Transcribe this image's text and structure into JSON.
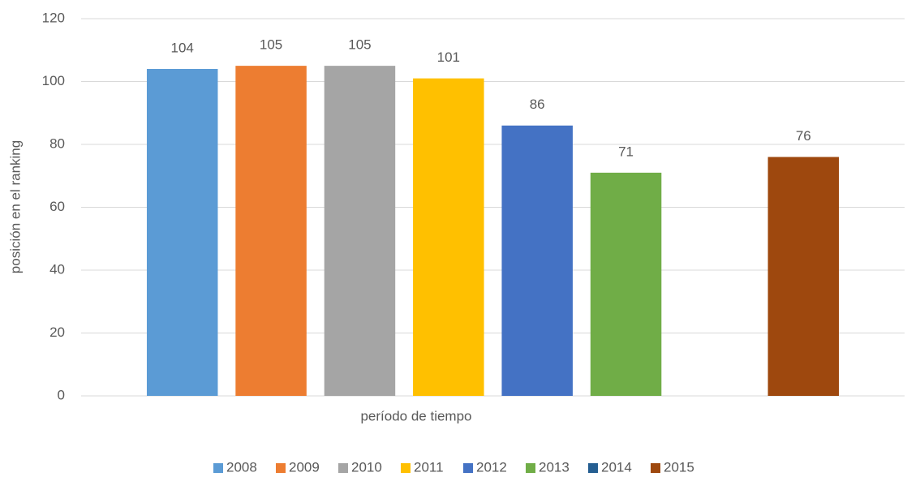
{
  "chart_data": {
    "type": "bar",
    "x_label": "período de tiempo",
    "y_label": "posición en el ranking",
    "categories": [
      null
    ],
    "series": [
      {
        "name": "2008",
        "color": "#5b9bd5",
        "values": [
          104
        ]
      },
      {
        "name": "2009",
        "color": "#ed7d31",
        "values": [
          105
        ]
      },
      {
        "name": "2010",
        "color": "#a5a5a5",
        "values": [
          105
        ]
      },
      {
        "name": "2011",
        "color": "#ffc000",
        "values": [
          101
        ]
      },
      {
        "name": "2012",
        "color": "#4472c4",
        "values": [
          86
        ]
      },
      {
        "name": "2013",
        "color": "#70ad47",
        "values": [
          71
        ]
      },
      {
        "name": "2014",
        "color": "#255e91",
        "values": [
          null
        ]
      },
      {
        "name": "2015",
        "color": "#9e480e",
        "values": [
          76
        ]
      }
    ],
    "ylim": [
      0,
      120
    ],
    "yticks": [
      0,
      20,
      40,
      60,
      80,
      100,
      120
    ],
    "grid": true,
    "legend": "bottom"
  }
}
